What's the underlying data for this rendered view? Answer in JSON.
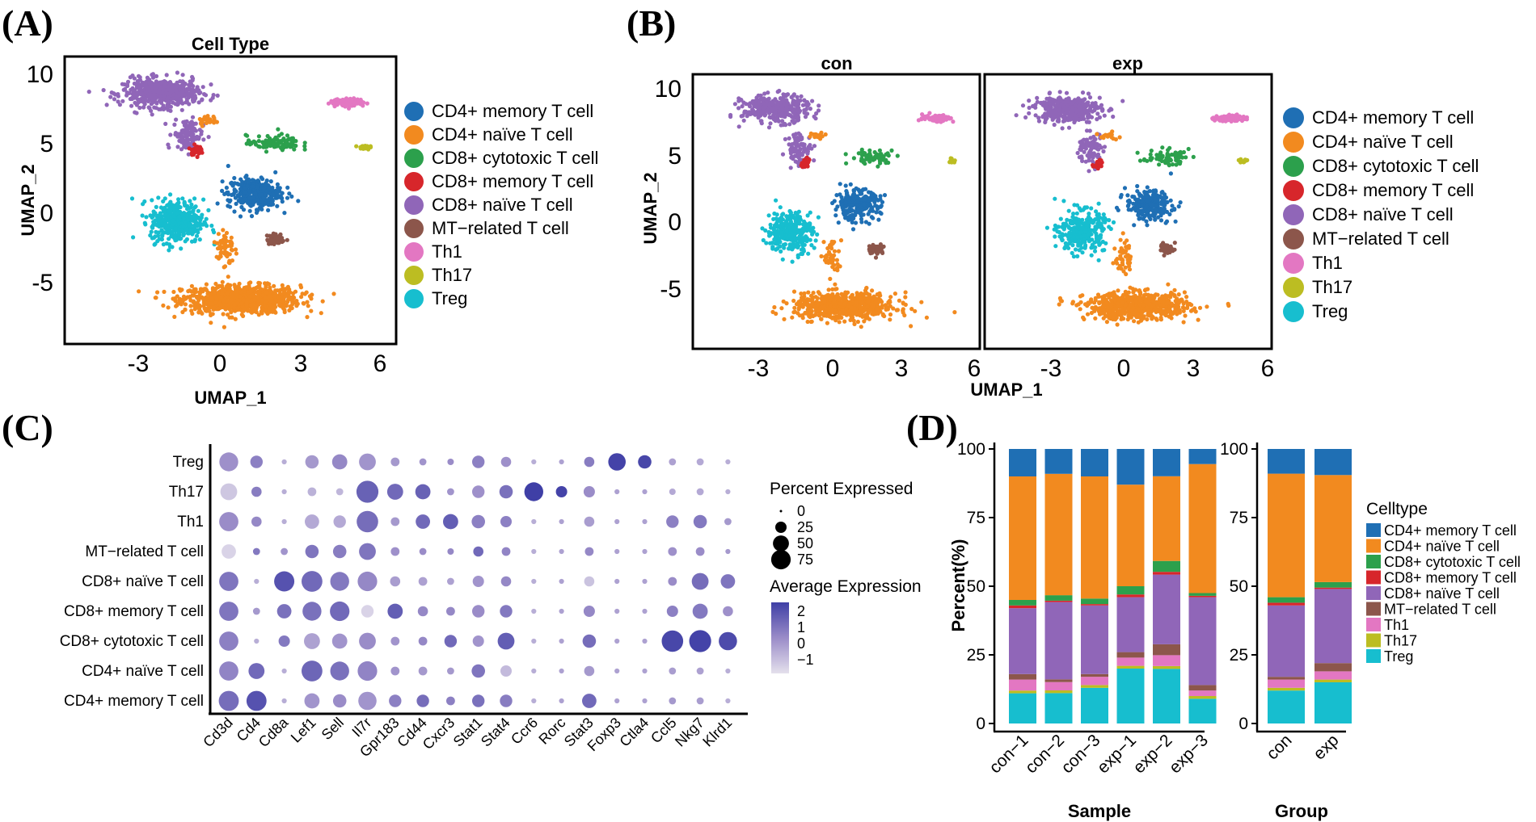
{
  "panel_labels": [
    "(A)",
    "(B)",
    "(C)",
    "(D)"
  ],
  "colors": {
    "CD4+ memory T cell": "#1f6fb4",
    "CD4+ naïve T cell": "#f28a1f",
    "CD8+ cytotoxic T cell": "#2ca04c",
    "CD8+ memory T cell": "#d7262b",
    "CD8+ naïve T cell": "#9066b8",
    "MT−related T cell": "#8c564b",
    "Th1": "#e377c2",
    "Th17": "#bcbd22",
    "Treg": "#17becf"
  },
  "chart_data": [
    {
      "id": "A",
      "type": "scatter",
      "title": "Cell Type",
      "xlabel": "UMAP_1",
      "ylabel": "UMAP_2",
      "xlim": [
        -6.2,
        6.2
      ],
      "ylim": [
        -9.4,
        11.2
      ],
      "xticks": [
        -3,
        0,
        3,
        6
      ],
      "yticks": [
        10,
        5,
        0,
        -5
      ],
      "legend": [
        "CD4+ memory T cell",
        "CD4+ naïve T cell",
        "CD8+ cytotoxic T cell",
        "CD8+ memory T cell",
        "CD8+ naïve T cell",
        "MT−related T cell",
        "Th1",
        "Th17",
        "Treg"
      ]
    },
    {
      "id": "B",
      "type": "scatter",
      "facets": [
        "con",
        "exp"
      ],
      "xlabel": "UMAP_1",
      "ylabel": "UMAP_2",
      "xlim": [
        -6.2,
        6.2
      ],
      "ylim": [
        -9.4,
        11.2
      ],
      "xticks": [
        -3,
        0,
        3,
        6
      ],
      "yticks": [
        10,
        5,
        0,
        -5
      ],
      "legend": [
        "CD4+ memory T cell",
        "CD4+ naïve T cell",
        "CD8+ cytotoxic T cell",
        "CD8+ memory T cell",
        "CD8+ naïve T cell",
        "MT−related T cell",
        "Th1",
        "Th17",
        "Treg"
      ]
    },
    {
      "id": "C",
      "type": "dotplot",
      "rows": [
        "Treg",
        "Th17",
        "Th1",
        "MT−related T cell",
        "CD8+ naïve T cell",
        "CD8+ memory T cell",
        "CD8+ cytotoxic T cell",
        "CD4+ naïve T cell",
        "CD4+ memory T cell"
      ],
      "genes": [
        "Cd3d",
        "Cd4",
        "Cd8a",
        "Lef1",
        "Sell",
        "Il7r",
        "Gpr183",
        "Cd44",
        "Cxcr3",
        "Stat1",
        "Stat4",
        "Ccr6",
        "Rorc",
        "Stat3",
        "Foxp3",
        "Ctla4",
        "Ccl5",
        "Nkg7",
        "Klrd1"
      ],
      "pct": [
        [
          70,
          30,
          5,
          35,
          45,
          55,
          15,
          10,
          8,
          30,
          20,
          5,
          5,
          20,
          60,
          35,
          10,
          10,
          5
        ],
        [
          55,
          20,
          5,
          15,
          10,
          95,
          50,
          45,
          10,
          30,
          35,
          70,
          25,
          25,
          5,
          5,
          8,
          10,
          5
        ],
        [
          72,
          20,
          5,
          40,
          30,
          90,
          15,
          40,
          45,
          35,
          25,
          5,
          5,
          20,
          5,
          5,
          30,
          35,
          10
        ],
        [
          40,
          10,
          10,
          35,
          35,
          55,
          15,
          10,
          8,
          20,
          15,
          5,
          5,
          15,
          5,
          5,
          15,
          15,
          5
        ],
        [
          72,
          5,
          80,
          85,
          70,
          75,
          20,
          15,
          10,
          25,
          20,
          5,
          5,
          20,
          5,
          5,
          15,
          55,
          40
        ],
        [
          72,
          10,
          40,
          70,
          75,
          30,
          45,
          20,
          15,
          30,
          30,
          5,
          5,
          25,
          5,
          5,
          25,
          45,
          20
        ],
        [
          72,
          5,
          25,
          50,
          45,
          55,
          15,
          15,
          30,
          25,
          55,
          5,
          5,
          35,
          5,
          5,
          90,
          95,
          65
        ],
        [
          72,
          50,
          5,
          85,
          70,
          75,
          15,
          15,
          10,
          35,
          25,
          5,
          5,
          20,
          5,
          5,
          10,
          10,
          5
        ],
        [
          78,
          78,
          5,
          45,
          35,
          65,
          30,
          30,
          15,
          30,
          30,
          5,
          5,
          40,
          5,
          5,
          10,
          10,
          5
        ]
      ],
      "avg": [
        [
          0.4,
          0.8,
          -0.3,
          0.2,
          0.6,
          0.3,
          0.2,
          0.3,
          0.5,
          0.8,
          0.4,
          -0.3,
          0.0,
          0.9,
          2.4,
          2.3,
          0.0,
          -0.2,
          -0.3
        ],
        [
          -0.9,
          0.9,
          -0.3,
          -0.4,
          -0.5,
          1.6,
          1.4,
          1.6,
          0.3,
          0.4,
          1.2,
          2.5,
          2.4,
          0.5,
          0.0,
          0.0,
          -0.2,
          -0.2,
          -0.3
        ],
        [
          0.5,
          0.6,
          -0.3,
          -0.2,
          -0.2,
          1.3,
          0.2,
          1.4,
          1.7,
          0.8,
          0.8,
          -0.3,
          0.0,
          0.1,
          0.0,
          0.0,
          0.8,
          1.0,
          0.2
        ],
        [
          -1.2,
          1.0,
          0.3,
          1.1,
          0.9,
          1.1,
          0.4,
          0.5,
          0.6,
          1.4,
          0.7,
          -0.3,
          0.0,
          0.6,
          0.0,
          0.0,
          0.4,
          0.5,
          0.2
        ],
        [
          1.1,
          -0.3,
          2.0,
          1.4,
          1.0,
          0.6,
          0.1,
          0.0,
          0.0,
          0.3,
          0.6,
          -0.3,
          0.0,
          -0.8,
          0.0,
          0.0,
          0.5,
          1.3,
          1.1
        ],
        [
          1.1,
          0.2,
          1.2,
          1.2,
          1.4,
          -1.2,
          1.7,
          0.6,
          0.6,
          0.5,
          1.0,
          -0.3,
          0.0,
          0.6,
          0.0,
          0.0,
          0.8,
          1.0,
          0.4
        ],
        [
          0.8,
          -0.3,
          1.0,
          0.0,
          0.3,
          0.5,
          0.3,
          0.6,
          1.4,
          0.3,
          1.7,
          -0.3,
          0.0,
          1.3,
          0.0,
          0.0,
          2.3,
          2.4,
          2.2
        ],
        [
          0.7,
          1.4,
          -0.3,
          1.5,
          1.2,
          0.7,
          0.3,
          0.2,
          0.2,
          1.1,
          -0.6,
          -0.3,
          0.0,
          0.2,
          0.0,
          0.0,
          0.1,
          0.0,
          -0.3
        ],
        [
          1.3,
          2.0,
          -0.3,
          0.3,
          0.5,
          0.3,
          0.8,
          1.3,
          0.8,
          1.2,
          0.9,
          -0.3,
          0.0,
          1.4,
          0.0,
          0.0,
          0.2,
          0.1,
          -0.3
        ]
      ],
      "size_legend_title": "Percent Expressed",
      "size_legend": [
        0,
        25,
        50,
        75
      ],
      "color_legend_title": "Average Expression",
      "color_legend_ticks": [
        2,
        1,
        0,
        -1
      ],
      "color_range": [
        -1.5,
        2.5
      ]
    },
    {
      "id": "D",
      "type": "stacked_bar",
      "ylabel": "Percent(%)",
      "yticks": [
        0,
        25,
        50,
        75,
        100
      ],
      "legend_title": "Celltype",
      "legend": [
        "CD4+ memory T cell",
        "CD4+ naïve T cell",
        "CD8+ cytotoxic T cell",
        "CD8+ memory T cell",
        "CD8+ naïve T cell",
        "MT−related T cell",
        "Th1",
        "Th17",
        "Treg"
      ],
      "stack_order_bottom_to_top": [
        "Treg",
        "Th17",
        "Th1",
        "MT−related T cell",
        "CD8+ naïve T cell",
        "CD8+ memory T cell",
        "CD8+ cytotoxic T cell",
        "CD4+ naïve T cell",
        "CD4+ memory T cell"
      ],
      "groups": [
        {
          "xlabel": "Sample",
          "categories": [
            "con−1",
            "con−2",
            "con−3",
            "exp−1",
            "exp−2",
            "exp−3"
          ],
          "values": [
            [
              11,
              1,
              4,
              2,
              24,
              1,
              2,
              45,
              10
            ],
            [
              11,
              1,
              3,
              1,
              28,
              0.5,
              2,
              44,
              9
            ],
            [
              13,
              1,
              3,
              1,
              25,
              0.5,
              2,
              44.5,
              10
            ],
            [
              20,
              1,
              3,
              2,
              20,
              1,
              3,
              37,
              13
            ],
            [
              20,
              1,
              4,
              4,
              25.5,
              1,
              4,
              31,
              10
            ],
            [
              9,
              1,
              2,
              2,
              32,
              0.5,
              1,
              47,
              5.5
            ]
          ]
        },
        {
          "xlabel": "Group",
          "categories": [
            "con",
            "exp"
          ],
          "values": [
            [
              12,
              1,
              3,
              1,
              26,
              1,
              2,
              45,
              9
            ],
            [
              15,
              1,
              3,
              3,
              27,
              0.5,
              2,
              39,
              9.5
            ]
          ]
        }
      ]
    }
  ]
}
